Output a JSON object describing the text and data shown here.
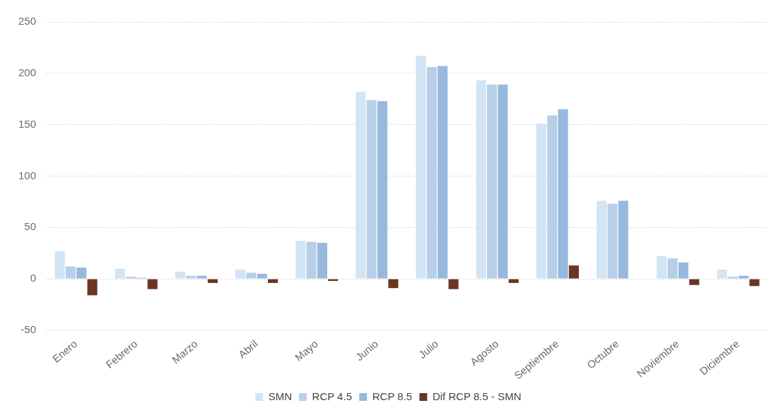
{
  "chart_data": {
    "type": "bar",
    "categories": [
      "Enero",
      "Febrero",
      "Marzo",
      "Abril",
      "Mayo",
      "Junio",
      "Julio",
      "Agosto",
      "Septiembre",
      "Octubre",
      "Noviembre",
      "Diciembre"
    ],
    "series": [
      {
        "name": "SMN",
        "color": "#d3e4f4",
        "values": [
          27,
          10,
          7,
          9,
          37,
          182,
          217,
          193,
          151,
          76,
          22,
          9
        ]
      },
      {
        "name": "RCP 4.5",
        "color": "#b7cfe9",
        "values": [
          12,
          2,
          3,
          6,
          36,
          174,
          206,
          189,
          159,
          73,
          20,
          2
        ]
      },
      {
        "name": "RCP 8.5",
        "color": "#98b9de",
        "values": [
          11,
          1,
          3,
          5,
          35,
          173,
          207,
          189,
          165,
          76,
          16,
          3
        ]
      },
      {
        "name": "Dif RCP 8.5 - SMN",
        "color": "#6b3524",
        "values": [
          -16,
          -10,
          -4,
          -4,
          -2,
          -9,
          -10,
          -4,
          13,
          0,
          -6,
          -7
        ]
      }
    ],
    "ylim": [
      -50,
      250
    ],
    "yticks": [
      -50,
      0,
      50,
      100,
      150,
      200,
      250
    ],
    "grid": "y",
    "legend": "bottom"
  }
}
